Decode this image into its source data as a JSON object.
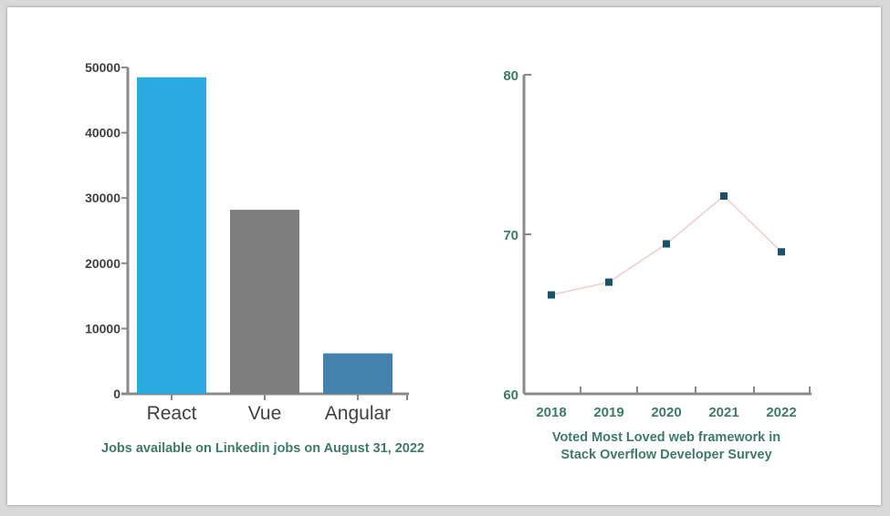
{
  "colors": {
    "caption": "#3f7a64",
    "axis": "#8a8a8a",
    "bar_tick_text": "#404040",
    "line_tick_text": "#3f7a64",
    "line_stroke": "#f0cccc",
    "marker": "#1a5168"
  },
  "chart_data": [
    {
      "type": "bar",
      "categories": [
        "React",
        "Vue",
        "Angular"
      ],
      "values": [
        48500,
        28200,
        6200
      ],
      "bar_colors": [
        "#29abe2",
        "#7f7f7f",
        "#4282ad"
      ],
      "ylim": [
        0,
        50000
      ],
      "yticks": [
        "0",
        "10000",
        "20000",
        "30000",
        "40000",
        "50000"
      ],
      "title": "",
      "xlabel": "",
      "ylabel": "",
      "caption": "Jobs available on Linkedin jobs on August 31, 2022",
      "grid": false
    },
    {
      "type": "line",
      "x": [
        "2018",
        "2019",
        "2020",
        "2021",
        "2022"
      ],
      "values": [
        66.2,
        67.0,
        69.4,
        72.4,
        68.9
      ],
      "ylim": [
        60,
        80
      ],
      "yticks": [
        "60",
        "70",
        "80"
      ],
      "title": "",
      "xlabel": "",
      "ylabel": "",
      "caption_lines": [
        "Voted Most Loved web framework in",
        "Stack Overflow Developer Survey"
      ],
      "grid": false
    }
  ]
}
